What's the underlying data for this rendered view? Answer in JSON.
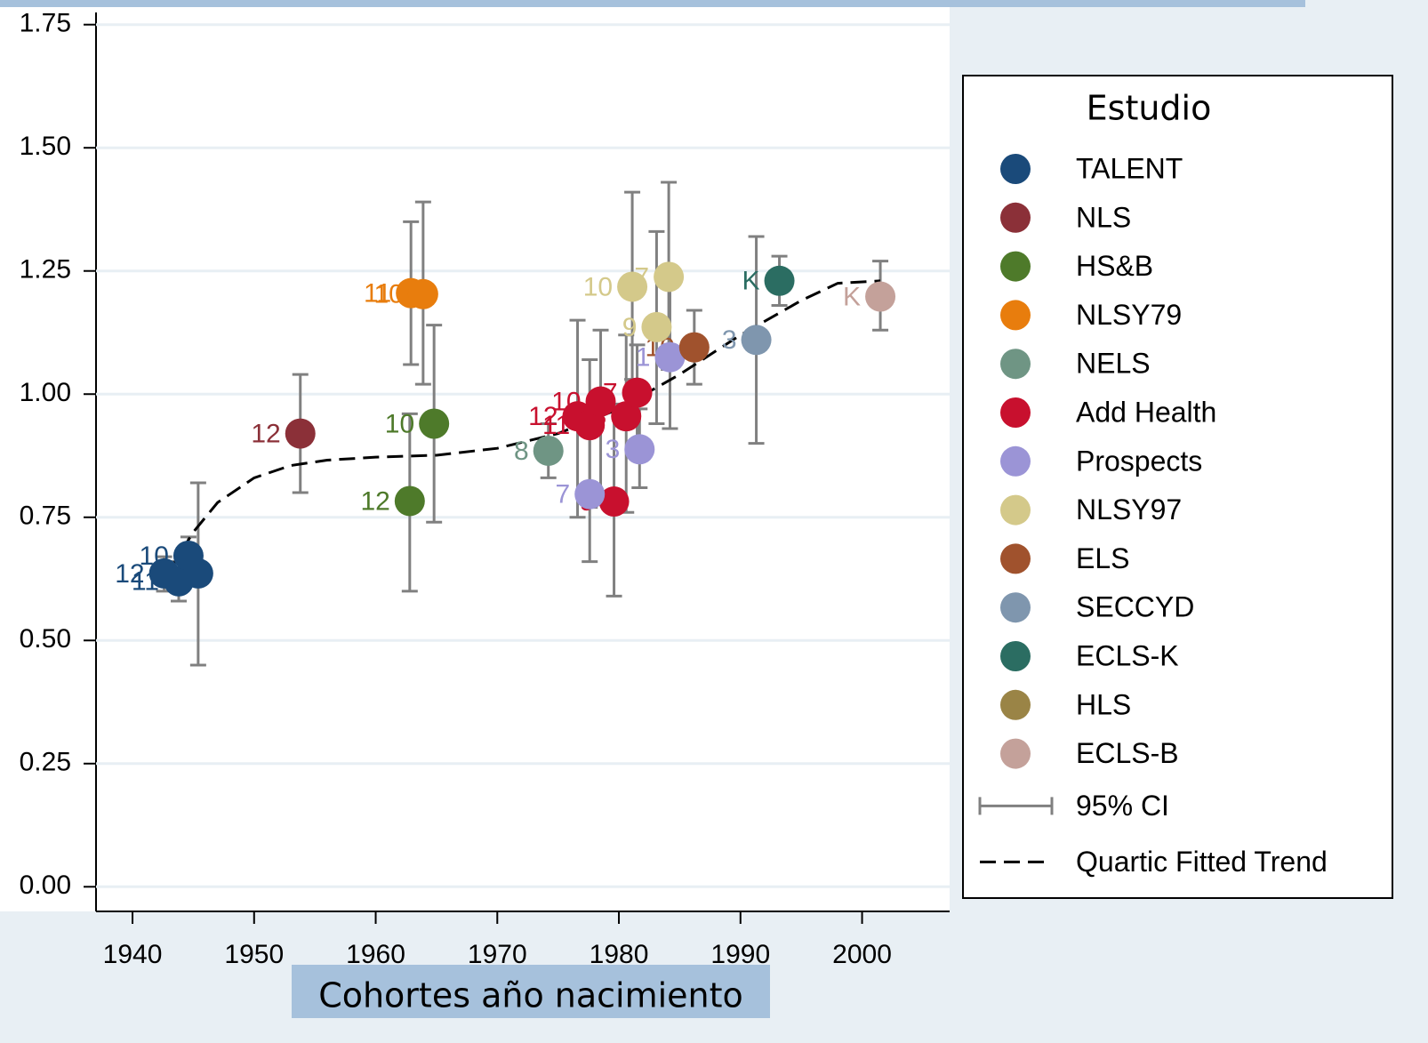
{
  "chart_data": {
    "type": "scatter",
    "x_label": "Cohortes año nacimiento",
    "legend_title": "Estudio",
    "xlim": [
      1937,
      2007.2
    ],
    "ylim": [
      -0.05,
      1.8
    ],
    "xticks": [
      1940,
      1950,
      1960,
      1970,
      1980,
      1990,
      2000
    ],
    "yticks": [
      {
        "value": 0,
        "label": "0.00"
      },
      {
        "value": 0.25,
        "label": "0.25"
      },
      {
        "value": 0.5,
        "label": "0.50"
      },
      {
        "value": 0.75,
        "label": "0.75"
      },
      {
        "value": 1,
        "label": "1.00"
      },
      {
        "value": 1.25,
        "label": "1.25"
      },
      {
        "value": 1.5,
        "label": "1.50"
      },
      {
        "value": 1.75,
        "label": "1.75"
      }
    ],
    "grid": true,
    "ci_name": "95% CI",
    "ci_color": "#808080",
    "series": [
      {
        "name": "TALENT",
        "color": "#1a4a7a",
        "x": [
          1942.6,
          1943.8,
          1944.6,
          1945.4
        ],
        "values": [
          0.636,
          0.62,
          0.672,
          0.636
        ],
        "labels": [
          "12",
          "11",
          "10",
          "9"
        ],
        "ci_low": [
          0.6,
          0.58,
          0.63,
          0.45
        ],
        "ci_high": [
          0.67,
          0.66,
          0.71,
          0.82
        ]
      },
      {
        "name": "NLS",
        "color": "#8b3038",
        "x": [
          1953.8
        ],
        "values": [
          0.92
        ],
        "labels": [
          "12"
        ],
        "ci_low": [
          0.8
        ],
        "ci_high": [
          1.04
        ]
      },
      {
        "name": "HS&B",
        "color": "#4e7a2a",
        "x": [
          1962.8,
          1964.8
        ],
        "values": [
          0.783,
          0.94
        ],
        "labels": [
          "12",
          "10"
        ],
        "ci_low": [
          0.6,
          0.74
        ],
        "ci_high": [
          0.96,
          1.14
        ]
      },
      {
        "name": "NLSY79",
        "color": "#e87d0d",
        "x": [
          1962.9,
          1963.9
        ],
        "values": [
          1.205,
          1.203
        ],
        "labels": [
          "11",
          "10"
        ],
        "ci_low": [
          1.06,
          1.02
        ],
        "ci_high": [
          1.35,
          1.39
        ]
      },
      {
        "name": "NELS",
        "color": "#6f9584",
        "x": [
          1974.2
        ],
        "values": [
          0.885
        ],
        "labels": [
          "8"
        ],
        "ci_low": [
          0.83
        ],
        "ci_high": [
          0.94
        ]
      },
      {
        "name": "Add Health",
        "color": "#c8102e",
        "x": [
          1976.6,
          1977.6,
          1978.5,
          1979.6,
          1980.6,
          1981.5
        ],
        "values": [
          0.955,
          0.937,
          0.985,
          0.782,
          0.955,
          1.003
        ],
        "labels": [
          "12",
          "11",
          "10",
          "9",
          "8",
          "7"
        ],
        "ci_low": [
          0.75,
          0.77,
          0.8,
          0.59,
          0.76,
          0.9
        ],
        "ci_high": [
          1.15,
          1.07,
          1.13,
          0.98,
          1.12,
          1.1
        ]
      },
      {
        "name": "Prospects",
        "color": "#9b94d6",
        "x": [
          1977.6,
          1981.7,
          1984.2
        ],
        "values": [
          0.797,
          0.888,
          1.075
        ],
        "labels": [
          "7",
          "3",
          "1"
        ],
        "ci_low": [
          0.66,
          0.81,
          0.93
        ],
        "ci_high": [
          0.94,
          0.97,
          1.22
        ]
      },
      {
        "name": "NLSY97",
        "color": "#d4c98a",
        "x": [
          1981.1,
          1983.1,
          1984.1
        ],
        "values": [
          1.218,
          1.136,
          1.238
        ],
        "labels": [
          "10",
          "9",
          "7"
        ],
        "ci_low": [
          1.03,
          0.94,
          1.05
        ],
        "ci_high": [
          1.41,
          1.33,
          1.43
        ]
      },
      {
        "name": "ELS",
        "color": "#a0522d",
        "x": [
          1986.2
        ],
        "values": [
          1.095
        ],
        "labels": [
          "10"
        ],
        "ci_low": [
          1.02
        ],
        "ci_high": [
          1.17
        ]
      },
      {
        "name": "SECCYD",
        "color": "#7f96ae",
        "x": [
          1991.3
        ],
        "values": [
          1.11
        ],
        "labels": [
          "3"
        ],
        "ci_low": [
          0.9
        ],
        "ci_high": [
          1.32
        ]
      },
      {
        "name": "ECLS-K",
        "color": "#2b6d62",
        "x": [
          1993.2
        ],
        "values": [
          1.23
        ],
        "labels": [
          "K"
        ],
        "ci_low": [
          1.18
        ],
        "ci_high": [
          1.28
        ]
      },
      {
        "name": "HLS",
        "color": "#9a8446",
        "x": [],
        "values": [],
        "labels": [],
        "ci_low": [],
        "ci_high": []
      },
      {
        "name": "ECLS-B",
        "color": "#c4a19a",
        "x": [
          2001.5
        ],
        "values": [
          1.198
        ],
        "labels": [
          "K"
        ],
        "ci_low": [
          1.13
        ],
        "ci_high": [
          1.27
        ]
      }
    ],
    "trend": {
      "name": "Quartic Fitted Trend",
      "color": "#000000",
      "x": [
        1943,
        1945,
        1947,
        1950,
        1953,
        1956,
        1960,
        1965,
        1970,
        1975,
        1980,
        1985,
        1990,
        1995,
        1998,
        2001.5
      ],
      "values": [
        0.64,
        0.72,
        0.78,
        0.83,
        0.855,
        0.866,
        0.872,
        0.876,
        0.89,
        0.92,
        0.97,
        1.04,
        1.12,
        1.19,
        1.225,
        1.23
      ]
    }
  }
}
